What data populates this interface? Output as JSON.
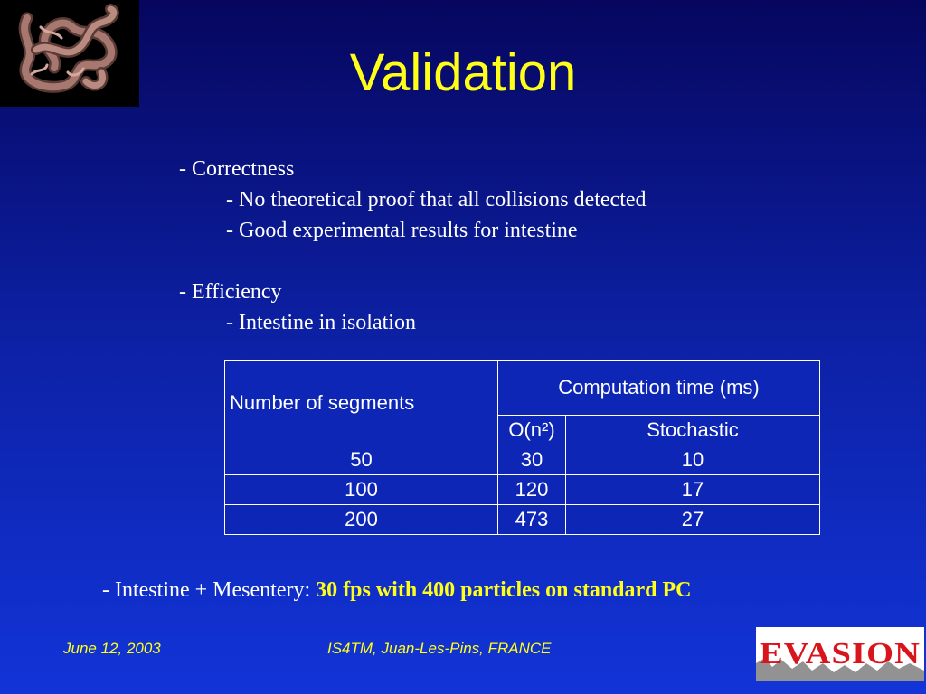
{
  "slide": {
    "title": "Validation",
    "bullets": {
      "correctness": "- Correctness",
      "correctness_items": [
        "- No theoretical proof that all collisions detected",
        "- Good experimental results for intestine"
      ],
      "efficiency": "- Efficiency",
      "efficiency_items": [
        "- Intestine in isolation"
      ]
    },
    "table": {
      "col_segments": "Number of segments",
      "col_computation": "Computation time (ms)",
      "col_on2": "O(n²)",
      "col_stochastic": "Stochastic",
      "rows": [
        {
          "segments": "50",
          "on2": "30",
          "stochastic": "10"
        },
        {
          "segments": "100",
          "on2": "120",
          "stochastic": "17"
        },
        {
          "segments": "200",
          "on2": "473",
          "stochastic": "27"
        }
      ]
    },
    "summary": {
      "prefix": "- Intestine + Mesentery: ",
      "highlight": "30 fps with 400 particles on standard PC"
    },
    "footer": {
      "date": "June 12, 2003",
      "venue": "IS4TM, Juan-Les-Pins, FRANCE"
    },
    "logo_text": "EVASION",
    "thumbnail_icon": "intestine-render-icon",
    "colors": {
      "title": "#ffff1a",
      "highlight": "#ffff1a",
      "logo_red": "#d8141c"
    }
  }
}
